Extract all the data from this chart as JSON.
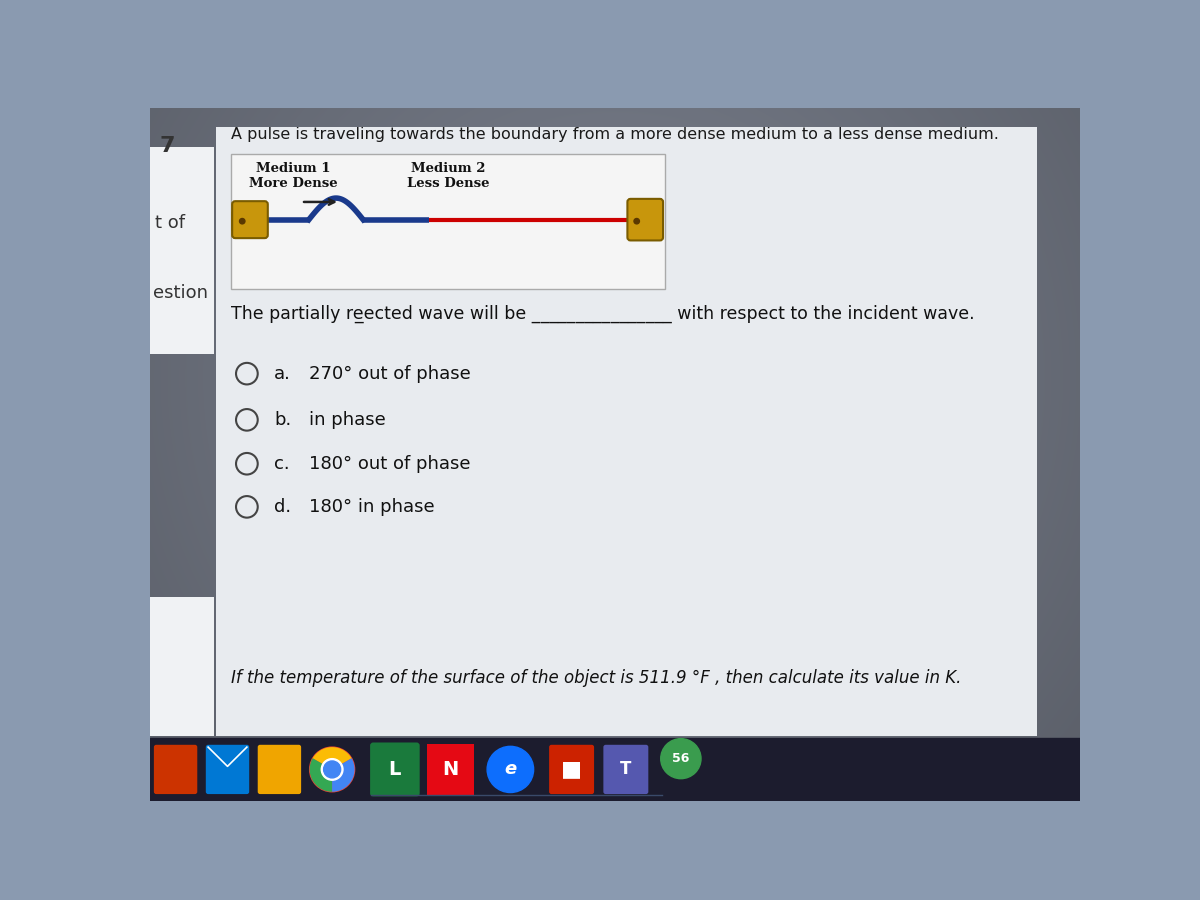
{
  "outer_bg": "#8a9ab0",
  "panel_bg": "#dde2e8",
  "diagram_bg": "#f0f0f0",
  "white": "#f5f5f5",
  "title_text": "A pulse is traveling towards the boundary from a more dense medium to a less dense medium.",
  "medium1_label": "Medium 1",
  "medium1_sublabel": "More Dense",
  "medium2_label": "Medium 2",
  "medium2_sublabel": "Less Dense",
  "question_text": "The partially re̲̲ected wave will be ________________ with respect to the incident wave.",
  "left_label1": "t of",
  "left_label2": "estion",
  "number_label": "7",
  "blue_line_color": "#1a3a8c",
  "red_line_color": "#cc0000",
  "options": [
    {
      "label": "a.",
      "text": "270° out of phase"
    },
    {
      "label": "b.",
      "text": "in phase"
    },
    {
      "label": "c.",
      "text": "180° out of phase"
    },
    {
      "label": "d.",
      "text": "180° in phase"
    }
  ],
  "bottom_text": "If the temperature of the surface of the object is 511.9 °F , then calculate its value in K.",
  "taskbar_color": "#1c1c2e",
  "hand_color": "#c8960c",
  "hand_edge": "#7a5c00"
}
